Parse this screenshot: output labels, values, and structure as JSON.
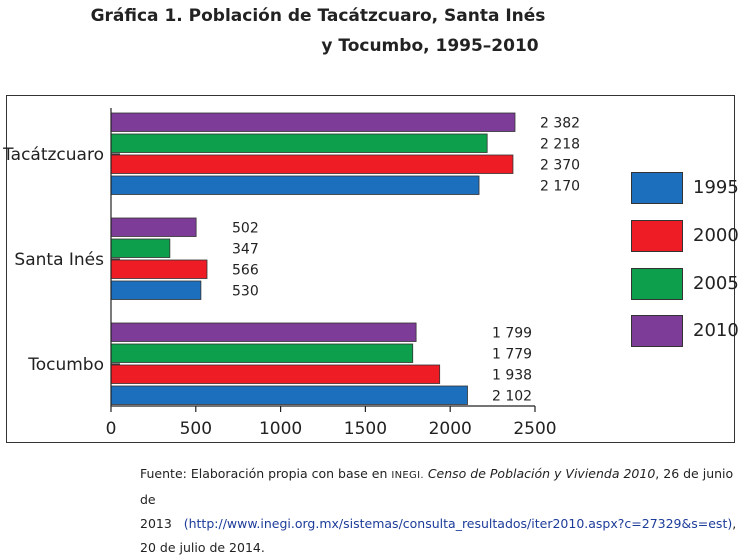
{
  "title_line1": "Gráfica 1. Población de Tacátzcuaro, Santa Inés",
  "title_line2": "y Tocumbo, 1995–2010",
  "source": {
    "prefix": "Fuente: Elaboración propia con base en ",
    "org": "INEGI.",
    "work": "Censo de Población y Vivienda 2010",
    "date1": ", 26 de junio de",
    "year": "2013",
    "url": "(http://www.inegi.org.mx/sistemas/consulta_resultados/iter2010.aspx?c=27329&s=est)",
    "suffix": ",",
    "date2": "20 de julio de 2014."
  },
  "legend": [
    {
      "name": "1995",
      "color": "#1b6fbd"
    },
    {
      "name": "2000",
      "color": "#ee1c25"
    },
    {
      "name": "2005",
      "color": "#0e9f4d"
    },
    {
      "name": "2010",
      "color": "#7d3c98"
    }
  ],
  "chart_data": {
    "type": "bar",
    "orientation": "horizontal",
    "categories": [
      "Tacátzcuaro",
      "Santa Inés",
      "Tocumbo"
    ],
    "series": [
      {
        "name": "1995",
        "color": "#1b6fbd",
        "values": [
          2170,
          530,
          2102
        ],
        "labels": [
          "2 170",
          "530",
          "2 102"
        ]
      },
      {
        "name": "2000",
        "color": "#ee1c25",
        "values": [
          2370,
          566,
          1938
        ],
        "labels": [
          "2 370",
          "566",
          "1 938"
        ]
      },
      {
        "name": "2005",
        "color": "#0e9f4d",
        "values": [
          2218,
          347,
          1779
        ],
        "labels": [
          "2 218",
          "347",
          "1 779"
        ]
      },
      {
        "name": "2010",
        "color": "#7d3c98",
        "values": [
          2382,
          502,
          1799
        ],
        "labels": [
          "2 382",
          "502",
          "1 799"
        ]
      }
    ],
    "xlim": [
      0,
      2500
    ],
    "xticks": [
      0,
      500,
      1000,
      1500,
      2000,
      2500
    ],
    "legend_position": "right",
    "grid": false
  }
}
